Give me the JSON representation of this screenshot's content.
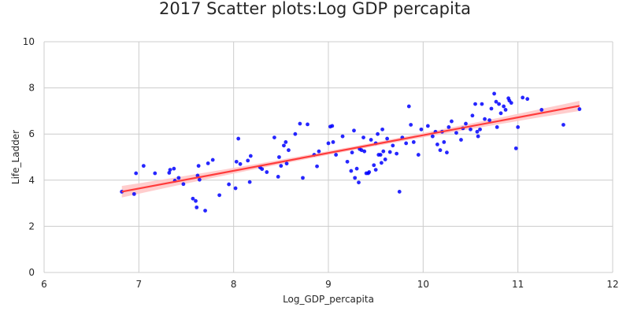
{
  "chart_data": {
    "type": "scatter",
    "title": "2017 Scatter plots:Log GDP percapita",
    "xlabel": "Log_GDP_percapita",
    "ylabel": "Life_Ladder",
    "xlim": [
      6,
      12
    ],
    "ylim": [
      0,
      10
    ],
    "xticks": [
      "6",
      "7",
      "8",
      "9",
      "10",
      "11",
      "12"
    ],
    "yticks": [
      "0",
      "2",
      "4",
      "6",
      "8",
      "10"
    ],
    "grid": true,
    "legend": "none",
    "point_color": "#0000ff",
    "fit_color": "#ff3b3b",
    "ci_color": "#ffc4c4",
    "regression": {
      "x_start": 6.82,
      "y_start": 3.5,
      "x_end": 11.65,
      "y_end": 7.22,
      "ci_start": 0.25,
      "ci_mid": 0.08,
      "ci_end": 0.22
    },
    "points": [
      [
        6.82,
        3.5
      ],
      [
        6.95,
        3.4
      ],
      [
        6.97,
        4.3
      ],
      [
        7.05,
        4.62
      ],
      [
        7.17,
        4.3
      ],
      [
        7.32,
        4.32
      ],
      [
        7.33,
        4.45
      ],
      [
        7.37,
        4.5
      ],
      [
        7.38,
        3.98
      ],
      [
        7.42,
        4.1
      ],
      [
        7.47,
        3.83
      ],
      [
        7.57,
        3.2
      ],
      [
        7.6,
        3.1
      ],
      [
        7.61,
        2.82
      ],
      [
        7.62,
        4.2
      ],
      [
        7.63,
        4.62
      ],
      [
        7.64,
        4.02
      ],
      [
        7.7,
        2.68
      ],
      [
        7.73,
        4.73
      ],
      [
        7.78,
        4.88
      ],
      [
        7.85,
        3.35
      ],
      [
        7.95,
        3.82
      ],
      [
        8.02,
        3.65
      ],
      [
        8.03,
        4.8
      ],
      [
        8.05,
        5.8
      ],
      [
        8.07,
        4.7
      ],
      [
        8.15,
        4.85
      ],
      [
        8.17,
        3.92
      ],
      [
        8.18,
        5.05
      ],
      [
        8.28,
        4.55
      ],
      [
        8.3,
        4.48
      ],
      [
        8.35,
        4.35
      ],
      [
        8.43,
        5.85
      ],
      [
        8.47,
        4.15
      ],
      [
        8.48,
        5.0
      ],
      [
        8.5,
        4.62
      ],
      [
        8.53,
        5.5
      ],
      [
        8.55,
        5.65
      ],
      [
        8.56,
        4.72
      ],
      [
        8.58,
        5.3
      ],
      [
        8.65,
        6.0
      ],
      [
        8.7,
        6.45
      ],
      [
        8.73,
        4.1
      ],
      [
        8.78,
        6.42
      ],
      [
        8.85,
        5.1
      ],
      [
        8.88,
        4.6
      ],
      [
        8.9,
        5.25
      ],
      [
        9.0,
        5.6
      ],
      [
        9.02,
        6.32
      ],
      [
        9.04,
        6.35
      ],
      [
        9.05,
        5.65
      ],
      [
        9.08,
        5.1
      ],
      [
        9.15,
        5.9
      ],
      [
        9.2,
        4.8
      ],
      [
        9.24,
        4.4
      ],
      [
        9.25,
        5.2
      ],
      [
        9.27,
        6.15
      ],
      [
        9.28,
        4.1
      ],
      [
        9.3,
        4.5
      ],
      [
        9.32,
        3.9
      ],
      [
        9.33,
        5.35
      ],
      [
        9.35,
        5.3
      ],
      [
        9.37,
        5.85
      ],
      [
        9.38,
        5.25
      ],
      [
        9.4,
        4.3
      ],
      [
        9.42,
        4.3
      ],
      [
        9.43,
        4.35
      ],
      [
        9.45,
        5.75
      ],
      [
        9.48,
        4.65
      ],
      [
        9.5,
        5.6
      ],
      [
        9.5,
        4.45
      ],
      [
        9.52,
        6.0
      ],
      [
        9.53,
        5.1
      ],
      [
        9.55,
        5.1
      ],
      [
        9.56,
        4.75
      ],
      [
        9.57,
        6.2
      ],
      [
        9.58,
        5.25
      ],
      [
        9.6,
        4.9
      ],
      [
        9.62,
        5.8
      ],
      [
        9.65,
        5.22
      ],
      [
        9.68,
        5.5
      ],
      [
        9.72,
        5.15
      ],
      [
        9.75,
        3.5
      ],
      [
        9.78,
        5.85
      ],
      [
        9.82,
        5.6
      ],
      [
        9.85,
        7.2
      ],
      [
        9.87,
        6.4
      ],
      [
        9.9,
        5.65
      ],
      [
        9.95,
        5.1
      ],
      [
        9.98,
        6.2
      ],
      [
        10.05,
        6.35
      ],
      [
        10.1,
        5.9
      ],
      [
        10.13,
        6.1
      ],
      [
        10.15,
        5.55
      ],
      [
        10.18,
        5.3
      ],
      [
        10.2,
        6.1
      ],
      [
        10.22,
        5.65
      ],
      [
        10.25,
        5.2
      ],
      [
        10.27,
        6.3
      ],
      [
        10.3,
        6.55
      ],
      [
        10.35,
        6.05
      ],
      [
        10.4,
        5.75
      ],
      [
        10.42,
        6.25
      ],
      [
        10.45,
        6.45
      ],
      [
        10.5,
        6.2
      ],
      [
        10.52,
        6.8
      ],
      [
        10.55,
        7.3
      ],
      [
        10.57,
        6.1
      ],
      [
        10.58,
        5.9
      ],
      [
        10.6,
        6.2
      ],
      [
        10.62,
        7.3
      ],
      [
        10.65,
        6.65
      ],
      [
        10.7,
        6.6
      ],
      [
        10.72,
        7.1
      ],
      [
        10.75,
        7.75
      ],
      [
        10.77,
        7.4
      ],
      [
        10.78,
        6.3
      ],
      [
        10.8,
        7.3
      ],
      [
        10.82,
        6.9
      ],
      [
        10.85,
        7.2
      ],
      [
        10.87,
        7.05
      ],
      [
        10.9,
        7.55
      ],
      [
        10.91,
        7.45
      ],
      [
        10.93,
        7.35
      ],
      [
        10.98,
        5.38
      ],
      [
        11.0,
        6.3
      ],
      [
        11.05,
        7.58
      ],
      [
        11.1,
        7.52
      ],
      [
        11.25,
        7.05
      ],
      [
        11.48,
        6.4
      ],
      [
        11.65,
        7.08
      ]
    ]
  }
}
